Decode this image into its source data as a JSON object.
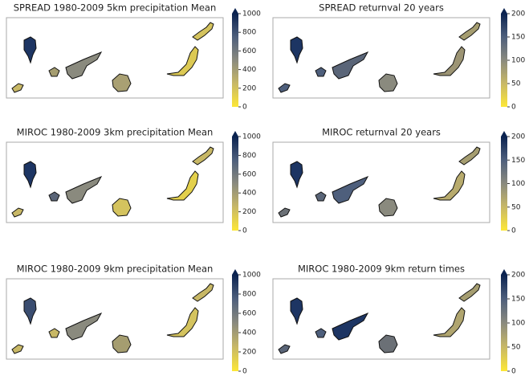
{
  "panels": [
    {
      "title": "SPREAD 1980-2009 5km precipitation Mean",
      "colorbar": {
        "lim": [
          0,
          1000
        ],
        "ticks": [
          0,
          200,
          400,
          600,
          800,
          1000
        ]
      }
    },
    {
      "title": "SPREAD returnval 20 years",
      "colorbar": {
        "lim": [
          0,
          200
        ],
        "ticks": [
          0,
          50,
          100,
          150,
          200
        ]
      }
    },
    {
      "title": "MIROC 1980-2009 3km precipitation Mean",
      "colorbar": {
        "lim": [
          0,
          1000
        ],
        "ticks": [
          0,
          200,
          400,
          600,
          800,
          1000
        ]
      }
    },
    {
      "title": "MIROC returnval 20 years",
      "colorbar": {
        "lim": [
          0,
          200
        ],
        "ticks": [
          0,
          50,
          100,
          150,
          200
        ]
      }
    },
    {
      "title": "MIROC 1980-2009 9km precipitation Mean",
      "colorbar": {
        "lim": [
          0,
          1000
        ],
        "ticks": [
          0,
          200,
          400,
          600,
          800,
          1000
        ]
      }
    },
    {
      "title": "MIROC 1980-2009 9km return times",
      "colorbar": {
        "lim": [
          0,
          200
        ],
        "ticks": [
          0,
          50,
          100,
          150,
          200
        ]
      }
    }
  ]
}
